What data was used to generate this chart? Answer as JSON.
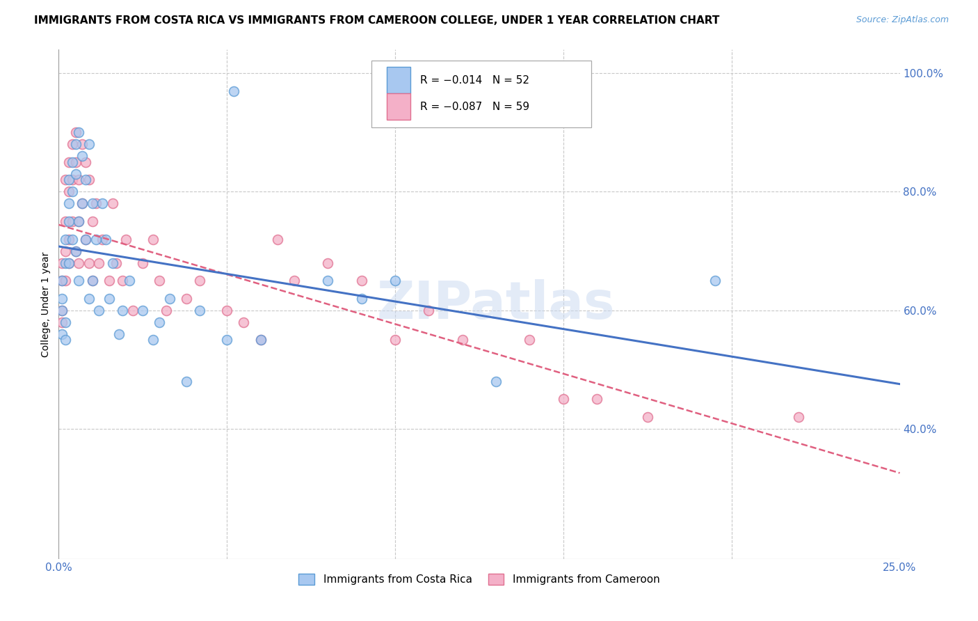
{
  "title": "IMMIGRANTS FROM COSTA RICA VS IMMIGRANTS FROM CAMEROON COLLEGE, UNDER 1 YEAR CORRELATION CHART",
  "source": "Source: ZipAtlas.com",
  "ylabel": "College, Under 1 year",
  "watermark": "ZIPatlas",
  "xmin": 0.0,
  "xmax": 0.25,
  "ymin": 0.18,
  "ymax": 1.04,
  "yticks": [
    0.4,
    0.6,
    0.8,
    1.0
  ],
  "yticklabels": [
    "40.0%",
    "60.0%",
    "80.0%",
    "100.0%"
  ],
  "xtick_left": "0.0%",
  "xtick_right": "25.0%",
  "costa_rica_color": "#a8c8f0",
  "costa_rica_edge": "#5b9bd5",
  "cameroon_color": "#f4b0c8",
  "cameroon_edge": "#e07090",
  "costa_rica_line_color": "#4472c4",
  "cameroon_line_color": "#e06080",
  "legend1_text": "R = −0.014   N = 52",
  "legend2_text": "R = −0.087   N = 59",
  "bottom_label1": "Immigrants from Costa Rica",
  "bottom_label2": "Immigrants from Cameroon",
  "costa_rica_x": [
    0.001,
    0.001,
    0.001,
    0.001,
    0.002,
    0.002,
    0.002,
    0.002,
    0.003,
    0.003,
    0.003,
    0.003,
    0.004,
    0.004,
    0.004,
    0.005,
    0.005,
    0.005,
    0.006,
    0.006,
    0.006,
    0.007,
    0.007,
    0.008,
    0.008,
    0.009,
    0.009,
    0.01,
    0.01,
    0.011,
    0.012,
    0.013,
    0.014,
    0.015,
    0.016,
    0.018,
    0.019,
    0.021,
    0.025,
    0.028,
    0.03,
    0.033,
    0.038,
    0.042,
    0.05,
    0.06,
    0.08,
    0.09,
    0.1,
    0.13,
    0.195,
    0.052
  ],
  "costa_rica_y": [
    0.65,
    0.62,
    0.6,
    0.56,
    0.68,
    0.72,
    0.58,
    0.55,
    0.78,
    0.82,
    0.75,
    0.68,
    0.85,
    0.8,
    0.72,
    0.88,
    0.83,
    0.7,
    0.9,
    0.75,
    0.65,
    0.86,
    0.78,
    0.82,
    0.72,
    0.88,
    0.62,
    0.78,
    0.65,
    0.72,
    0.6,
    0.78,
    0.72,
    0.62,
    0.68,
    0.56,
    0.6,
    0.65,
    0.6,
    0.55,
    0.58,
    0.62,
    0.48,
    0.6,
    0.55,
    0.55,
    0.65,
    0.62,
    0.65,
    0.48,
    0.65,
    0.97
  ],
  "cameroon_x": [
    0.001,
    0.001,
    0.001,
    0.001,
    0.002,
    0.002,
    0.002,
    0.002,
    0.003,
    0.003,
    0.003,
    0.003,
    0.004,
    0.004,
    0.004,
    0.005,
    0.005,
    0.005,
    0.006,
    0.006,
    0.006,
    0.007,
    0.007,
    0.008,
    0.008,
    0.009,
    0.009,
    0.01,
    0.01,
    0.011,
    0.012,
    0.013,
    0.015,
    0.016,
    0.017,
    0.019,
    0.02,
    0.022,
    0.025,
    0.028,
    0.03,
    0.032,
    0.038,
    0.042,
    0.05,
    0.055,
    0.06,
    0.065,
    0.07,
    0.08,
    0.09,
    0.1,
    0.11,
    0.12,
    0.14,
    0.15,
    0.16,
    0.175,
    0.22
  ],
  "cameroon_y": [
    0.65,
    0.68,
    0.6,
    0.58,
    0.75,
    0.82,
    0.7,
    0.65,
    0.85,
    0.8,
    0.72,
    0.68,
    0.88,
    0.82,
    0.75,
    0.9,
    0.85,
    0.7,
    0.82,
    0.75,
    0.68,
    0.88,
    0.78,
    0.85,
    0.72,
    0.82,
    0.68,
    0.75,
    0.65,
    0.78,
    0.68,
    0.72,
    0.65,
    0.78,
    0.68,
    0.65,
    0.72,
    0.6,
    0.68,
    0.72,
    0.65,
    0.6,
    0.62,
    0.65,
    0.6,
    0.58,
    0.55,
    0.72,
    0.65,
    0.68,
    0.65,
    0.55,
    0.6,
    0.55,
    0.55,
    0.45,
    0.45,
    0.42,
    0.42
  ]
}
